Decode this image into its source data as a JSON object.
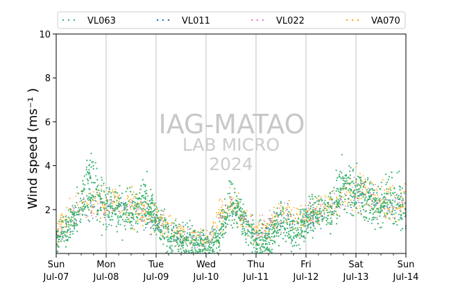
{
  "chart_data": {
    "type": "scatter",
    "title": "",
    "xlabel": "",
    "ylabel": "Wind speed (ms⁻¹ )",
    "ylim": [
      0,
      10
    ],
    "yticks": [
      2,
      4,
      6,
      8,
      10
    ],
    "xlim": [
      "2024-07-07 00:00",
      "2024-07-14 00:00"
    ],
    "x_ticks": [
      {
        "day": "Sun",
        "date": "Jul-07"
      },
      {
        "day": "Mon",
        "date": "Jul-08"
      },
      {
        "day": "Tue",
        "date": "Jul-09"
      },
      {
        "day": "Wed",
        "date": "Jul-10"
      },
      {
        "day": "Thu",
        "date": "Jul-11"
      },
      {
        "day": "Fri",
        "date": "Jul-12"
      },
      {
        "day": "Sat",
        "date": "Jul-13"
      },
      {
        "day": "Sun",
        "date": "Jul-14"
      }
    ],
    "grid": "vertical",
    "legend_position": "top",
    "watermark": [
      "IAG-MATAO",
      "LAB MICRO",
      "2024"
    ],
    "series": [
      {
        "name": "VL063",
        "color": "#3cb371",
        "trend": [
          [
            "2024-07-07 00:00",
            0.5
          ],
          [
            "2024-07-07 06:00",
            1.2
          ],
          [
            "2024-07-07 12:00",
            2.2
          ],
          [
            "2024-07-07 18:00",
            3.4
          ],
          [
            "2024-07-08 00:00",
            2.0
          ],
          [
            "2024-07-08 06:00",
            2.1
          ],
          [
            "2024-07-08 12:00",
            1.9
          ],
          [
            "2024-07-08 18:00",
            2.6
          ],
          [
            "2024-07-09 00:00",
            1.5
          ],
          [
            "2024-07-09 06:00",
            0.8
          ],
          [
            "2024-07-09 12:00",
            0.6
          ],
          [
            "2024-07-09 18:00",
            0.5
          ],
          [
            "2024-07-10 00:00",
            0.4
          ],
          [
            "2024-07-10 06:00",
            0.6
          ],
          [
            "2024-07-10 12:00",
            2.4
          ],
          [
            "2024-07-10 18:00",
            1.5
          ],
          [
            "2024-07-11 00:00",
            0.6
          ],
          [
            "2024-07-11 06:00",
            0.5
          ],
          [
            "2024-07-11 12:00",
            1.7
          ],
          [
            "2024-07-11 18:00",
            0.8
          ],
          [
            "2024-07-12 00:00",
            1.5
          ],
          [
            "2024-07-12 06:00",
            1.8
          ],
          [
            "2024-07-12 12:00",
            2.0
          ],
          [
            "2024-07-12 18:00",
            3.2
          ],
          [
            "2024-07-13 00:00",
            2.9
          ],
          [
            "2024-07-13 06:00",
            2.3
          ],
          [
            "2024-07-13 12:00",
            2.2
          ],
          [
            "2024-07-13 18:00",
            2.6
          ],
          [
            "2024-07-14 00:00",
            2.0
          ]
        ]
      },
      {
        "name": "VL011",
        "color": "#1f77b4",
        "trend": [
          [
            "2024-07-07 00:00",
            0.8
          ],
          [
            "2024-07-07 12:00",
            2.0
          ],
          [
            "2024-07-08 00:00",
            2.1
          ],
          [
            "2024-07-08 12:00",
            2.0
          ],
          [
            "2024-07-09 00:00",
            1.4
          ],
          [
            "2024-07-09 12:00",
            0.7
          ],
          [
            "2024-07-10 00:00",
            0.5
          ],
          [
            "2024-07-10 12:00",
            2.1
          ],
          [
            "2024-07-11 00:00",
            0.7
          ],
          [
            "2024-07-11 12:00",
            1.6
          ],
          [
            "2024-07-12 00:00",
            1.5
          ],
          [
            "2024-07-12 12:00",
            2.0
          ],
          [
            "2024-07-13 00:00",
            2.7
          ],
          [
            "2024-07-13 12:00",
            2.2
          ],
          [
            "2024-07-14 00:00",
            2.1
          ]
        ]
      },
      {
        "name": "VL022",
        "color": "#e377c2",
        "trend": [
          [
            "2024-07-07 00:00",
            0.9
          ],
          [
            "2024-07-07 12:00",
            2.1
          ],
          [
            "2024-07-08 00:00",
            2.2
          ],
          [
            "2024-07-08 12:00",
            2.1
          ],
          [
            "2024-07-09 00:00",
            1.5
          ],
          [
            "2024-07-09 12:00",
            0.8
          ],
          [
            "2024-07-10 00:00",
            0.5
          ],
          [
            "2024-07-10 12:00",
            2.2
          ],
          [
            "2024-07-11 00:00",
            0.8
          ],
          [
            "2024-07-11 12:00",
            1.7
          ],
          [
            "2024-07-12 00:00",
            1.6
          ],
          [
            "2024-07-12 12:00",
            2.1
          ],
          [
            "2024-07-13 00:00",
            2.8
          ],
          [
            "2024-07-13 12:00",
            2.3
          ],
          [
            "2024-07-14 00:00",
            2.2
          ]
        ]
      },
      {
        "name": "VA070",
        "color": "#ffa500",
        "trend": [
          [
            "2024-07-07 00:00",
            1.0
          ],
          [
            "2024-07-07 12:00",
            2.3
          ],
          [
            "2024-07-08 00:00",
            2.3
          ],
          [
            "2024-07-08 12:00",
            2.2
          ],
          [
            "2024-07-09 00:00",
            1.6
          ],
          [
            "2024-07-09 12:00",
            0.9
          ],
          [
            "2024-07-10 00:00",
            0.6
          ],
          [
            "2024-07-10 12:00",
            2.3
          ],
          [
            "2024-07-11 00:00",
            0.9
          ],
          [
            "2024-07-11 12:00",
            1.8
          ],
          [
            "2024-07-12 00:00",
            1.7
          ],
          [
            "2024-07-12 12:00",
            2.2
          ],
          [
            "2024-07-13 00:00",
            2.9
          ],
          [
            "2024-07-13 12:00",
            2.4
          ],
          [
            "2024-07-14 00:00",
            2.3
          ]
        ]
      }
    ]
  }
}
